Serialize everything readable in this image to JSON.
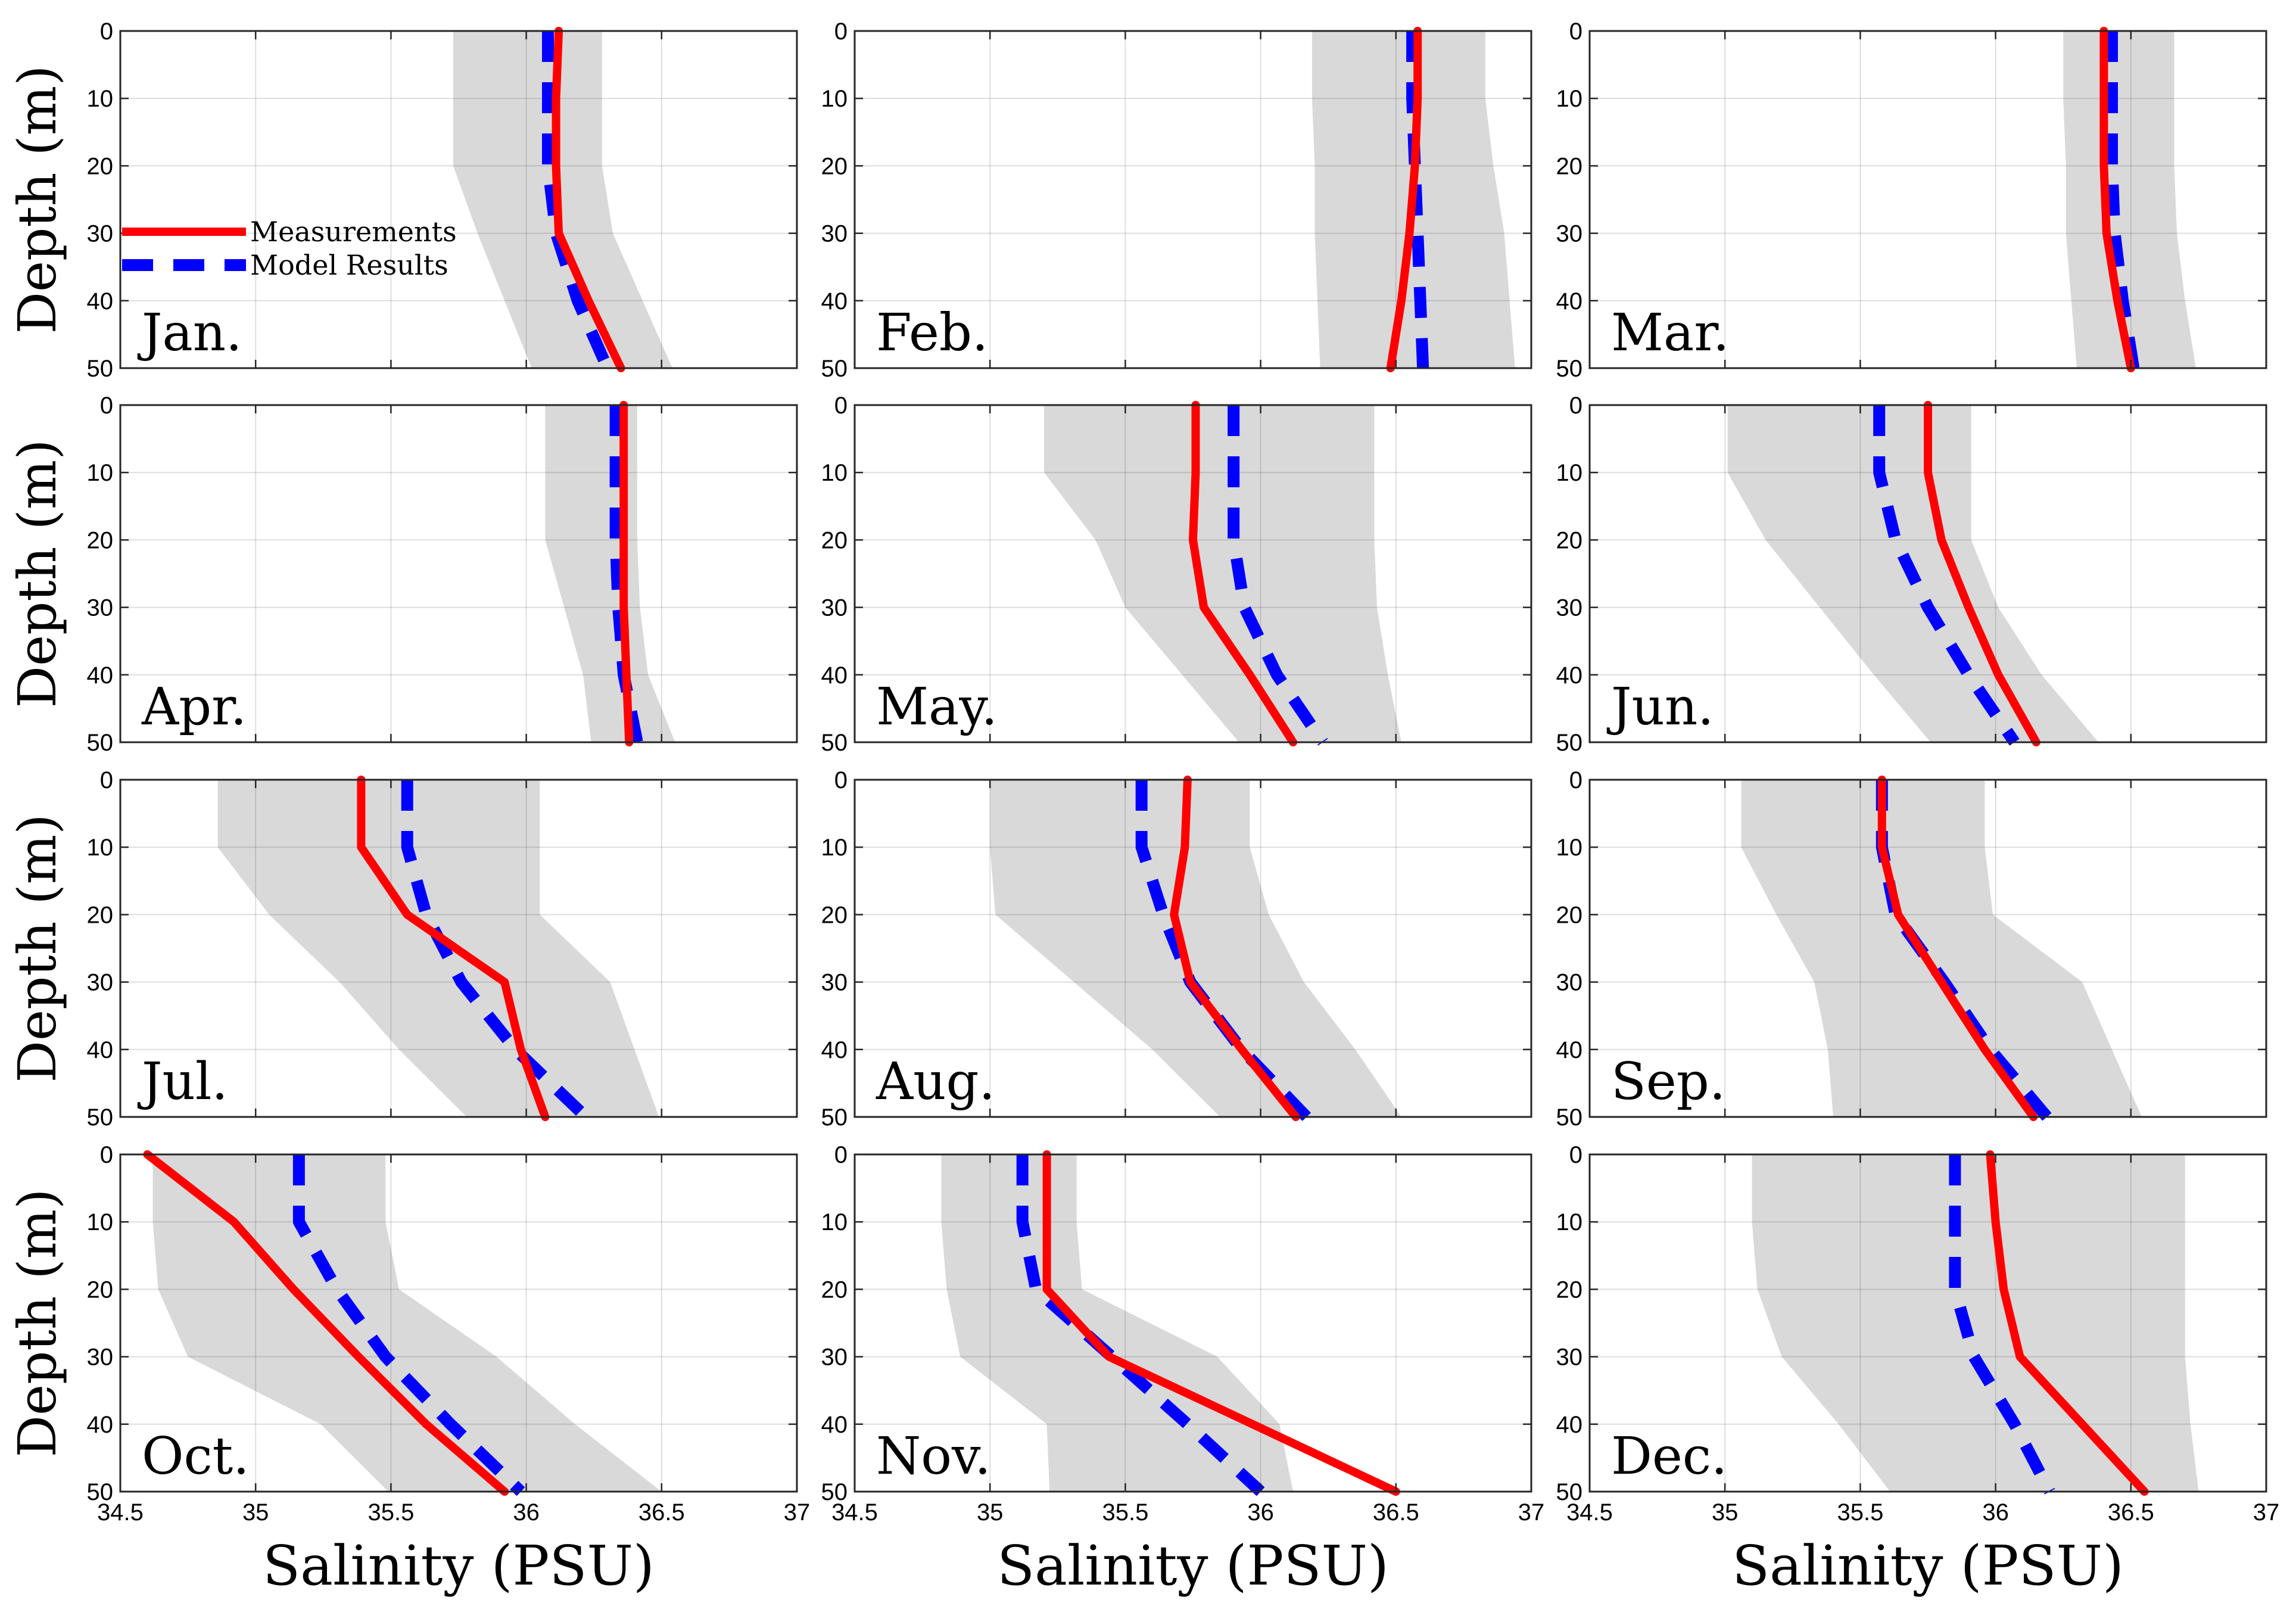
{
  "chart_data": {
    "type": "line",
    "layout": "4x3 small multiples",
    "xlabel": "Salinity (PSU)",
    "ylabel": "Depth (m)",
    "xlim": [
      34.5,
      37
    ],
    "ylim": [
      0,
      50
    ],
    "y_inverted": true,
    "xticks": [
      "34.5",
      "35",
      "35.5",
      "36",
      "36.5",
      "37"
    ],
    "yticks": [
      "0",
      "10",
      "20",
      "30",
      "40",
      "50"
    ],
    "grid": true,
    "legend": {
      "placement": "inside first panel, upper-left",
      "entries": [
        {
          "name": "Measurements",
          "style": "solid",
          "color": "#ff0000"
        },
        {
          "name": "Model Results",
          "style": "dashed",
          "color": "#0000ff"
        }
      ]
    },
    "band_color": "#d9d9d9",
    "depths": [
      0,
      10,
      20,
      30,
      40,
      50
    ],
    "panels": [
      {
        "month": "Jan.",
        "band_low": [
          35.73,
          35.73,
          35.73,
          35.82,
          35.92,
          36.02
        ],
        "band_high": [
          36.28,
          36.28,
          36.28,
          36.32,
          36.43,
          36.54
        ],
        "measurements": [
          36.12,
          36.11,
          36.11,
          36.12,
          36.23,
          36.35
        ],
        "model": [
          36.08,
          36.08,
          36.08,
          36.11,
          36.19,
          36.3
        ]
      },
      {
        "month": "Feb.",
        "band_low": [
          36.19,
          36.19,
          36.2,
          36.2,
          36.21,
          36.22
        ],
        "band_high": [
          36.83,
          36.83,
          36.86,
          36.9,
          36.92,
          36.94
        ],
        "measurements": [
          36.58,
          36.58,
          36.57,
          36.55,
          36.52,
          36.48
        ],
        "model": [
          36.56,
          36.56,
          36.57,
          36.58,
          36.59,
          36.6
        ]
      },
      {
        "month": "Mar.",
        "band_low": [
          36.25,
          36.25,
          36.26,
          36.26,
          36.28,
          36.3
        ],
        "band_high": [
          36.66,
          36.66,
          36.66,
          36.67,
          36.7,
          36.74
        ],
        "measurements": [
          36.4,
          36.4,
          36.4,
          36.41,
          36.45,
          36.5
        ],
        "model": [
          36.43,
          36.43,
          36.43,
          36.44,
          36.47,
          36.51
        ]
      },
      {
        "month": "Apr.",
        "band_low": [
          36.07,
          36.07,
          36.07,
          36.14,
          36.21,
          36.24
        ],
        "band_high": [
          36.41,
          36.41,
          36.41,
          36.42,
          36.45,
          36.55
        ],
        "measurements": [
          36.36,
          36.36,
          36.36,
          36.36,
          36.37,
          36.38
        ],
        "model": [
          36.33,
          36.33,
          36.33,
          36.34,
          36.36,
          36.41
        ]
      },
      {
        "month": "May.",
        "band_low": [
          35.2,
          35.2,
          35.39,
          35.5,
          35.71,
          35.92
        ],
        "band_high": [
          36.42,
          36.42,
          36.42,
          36.43,
          36.47,
          36.52
        ],
        "measurements": [
          35.76,
          35.76,
          35.75,
          35.79,
          35.96,
          36.12
        ],
        "model": [
          35.9,
          35.9,
          35.9,
          35.94,
          36.06,
          36.23
        ]
      },
      {
        "month": "Jun.",
        "band_low": [
          35.01,
          35.01,
          35.15,
          35.35,
          35.55,
          35.76
        ],
        "band_high": [
          35.91,
          35.91,
          35.91,
          36.01,
          36.17,
          36.38
        ],
        "measurements": [
          35.75,
          35.75,
          35.8,
          35.9,
          36.01,
          36.15
        ],
        "model": [
          35.57,
          35.57,
          35.63,
          35.75,
          35.9,
          36.07
        ]
      },
      {
        "month": "Jul.",
        "band_low": [
          34.86,
          34.86,
          35.05,
          35.31,
          35.53,
          35.78
        ],
        "band_high": [
          36.05,
          36.05,
          36.05,
          36.31,
          36.4,
          36.49
        ],
        "measurements": [
          35.39,
          35.39,
          35.56,
          35.92,
          35.98,
          36.07
        ],
        "model": [
          35.56,
          35.56,
          35.63,
          35.76,
          35.96,
          36.22
        ]
      },
      {
        "month": "Aug.",
        "band_low": [
          35.0,
          35.0,
          35.02,
          35.31,
          35.6,
          35.85
        ],
        "band_high": [
          35.96,
          35.96,
          36.03,
          36.16,
          36.35,
          36.52
        ],
        "measurements": [
          35.73,
          35.72,
          35.68,
          35.74,
          35.93,
          36.13
        ],
        "model": [
          35.56,
          35.56,
          35.64,
          35.74,
          35.93,
          36.17
        ]
      },
      {
        "month": "Sep.",
        "band_low": [
          35.06,
          35.06,
          35.19,
          35.33,
          35.38,
          35.4
        ],
        "band_high": [
          35.96,
          35.96,
          35.99,
          36.32,
          36.43,
          36.54
        ],
        "measurements": [
          35.58,
          35.58,
          35.64,
          35.8,
          35.96,
          36.14
        ],
        "model": [
          35.58,
          35.58,
          35.63,
          35.81,
          35.98,
          36.19
        ]
      },
      {
        "month": "Oct.",
        "band_low": [
          34.62,
          34.62,
          34.64,
          34.75,
          35.24,
          35.49
        ],
        "band_high": [
          35.48,
          35.48,
          35.53,
          35.89,
          36.18,
          36.5
        ],
        "measurements": [
          34.6,
          34.92,
          35.14,
          35.38,
          35.63,
          35.92
        ],
        "model": [
          35.16,
          35.16,
          35.3,
          35.48,
          35.72,
          35.98
        ]
      },
      {
        "month": "Nov.",
        "band_low": [
          34.82,
          34.82,
          34.84,
          34.89,
          35.21,
          35.22
        ],
        "band_high": [
          35.32,
          35.32,
          35.34,
          35.84,
          36.07,
          36.12
        ],
        "measurements": [
          35.21,
          35.21,
          35.21,
          35.44,
          35.97,
          36.5
        ],
        "model": [
          35.12,
          35.12,
          35.17,
          35.45,
          35.73,
          36.0
        ]
      },
      {
        "month": "Dec.",
        "band_low": [
          35.1,
          35.1,
          35.12,
          35.21,
          35.42,
          35.61
        ],
        "band_high": [
          36.7,
          36.7,
          36.7,
          36.7,
          36.72,
          36.75
        ],
        "measurements": [
          35.98,
          36.0,
          36.03,
          36.09,
          36.32,
          36.55
        ],
        "model": [
          35.85,
          35.85,
          35.85,
          35.92,
          36.07,
          36.2
        ]
      }
    ]
  }
}
